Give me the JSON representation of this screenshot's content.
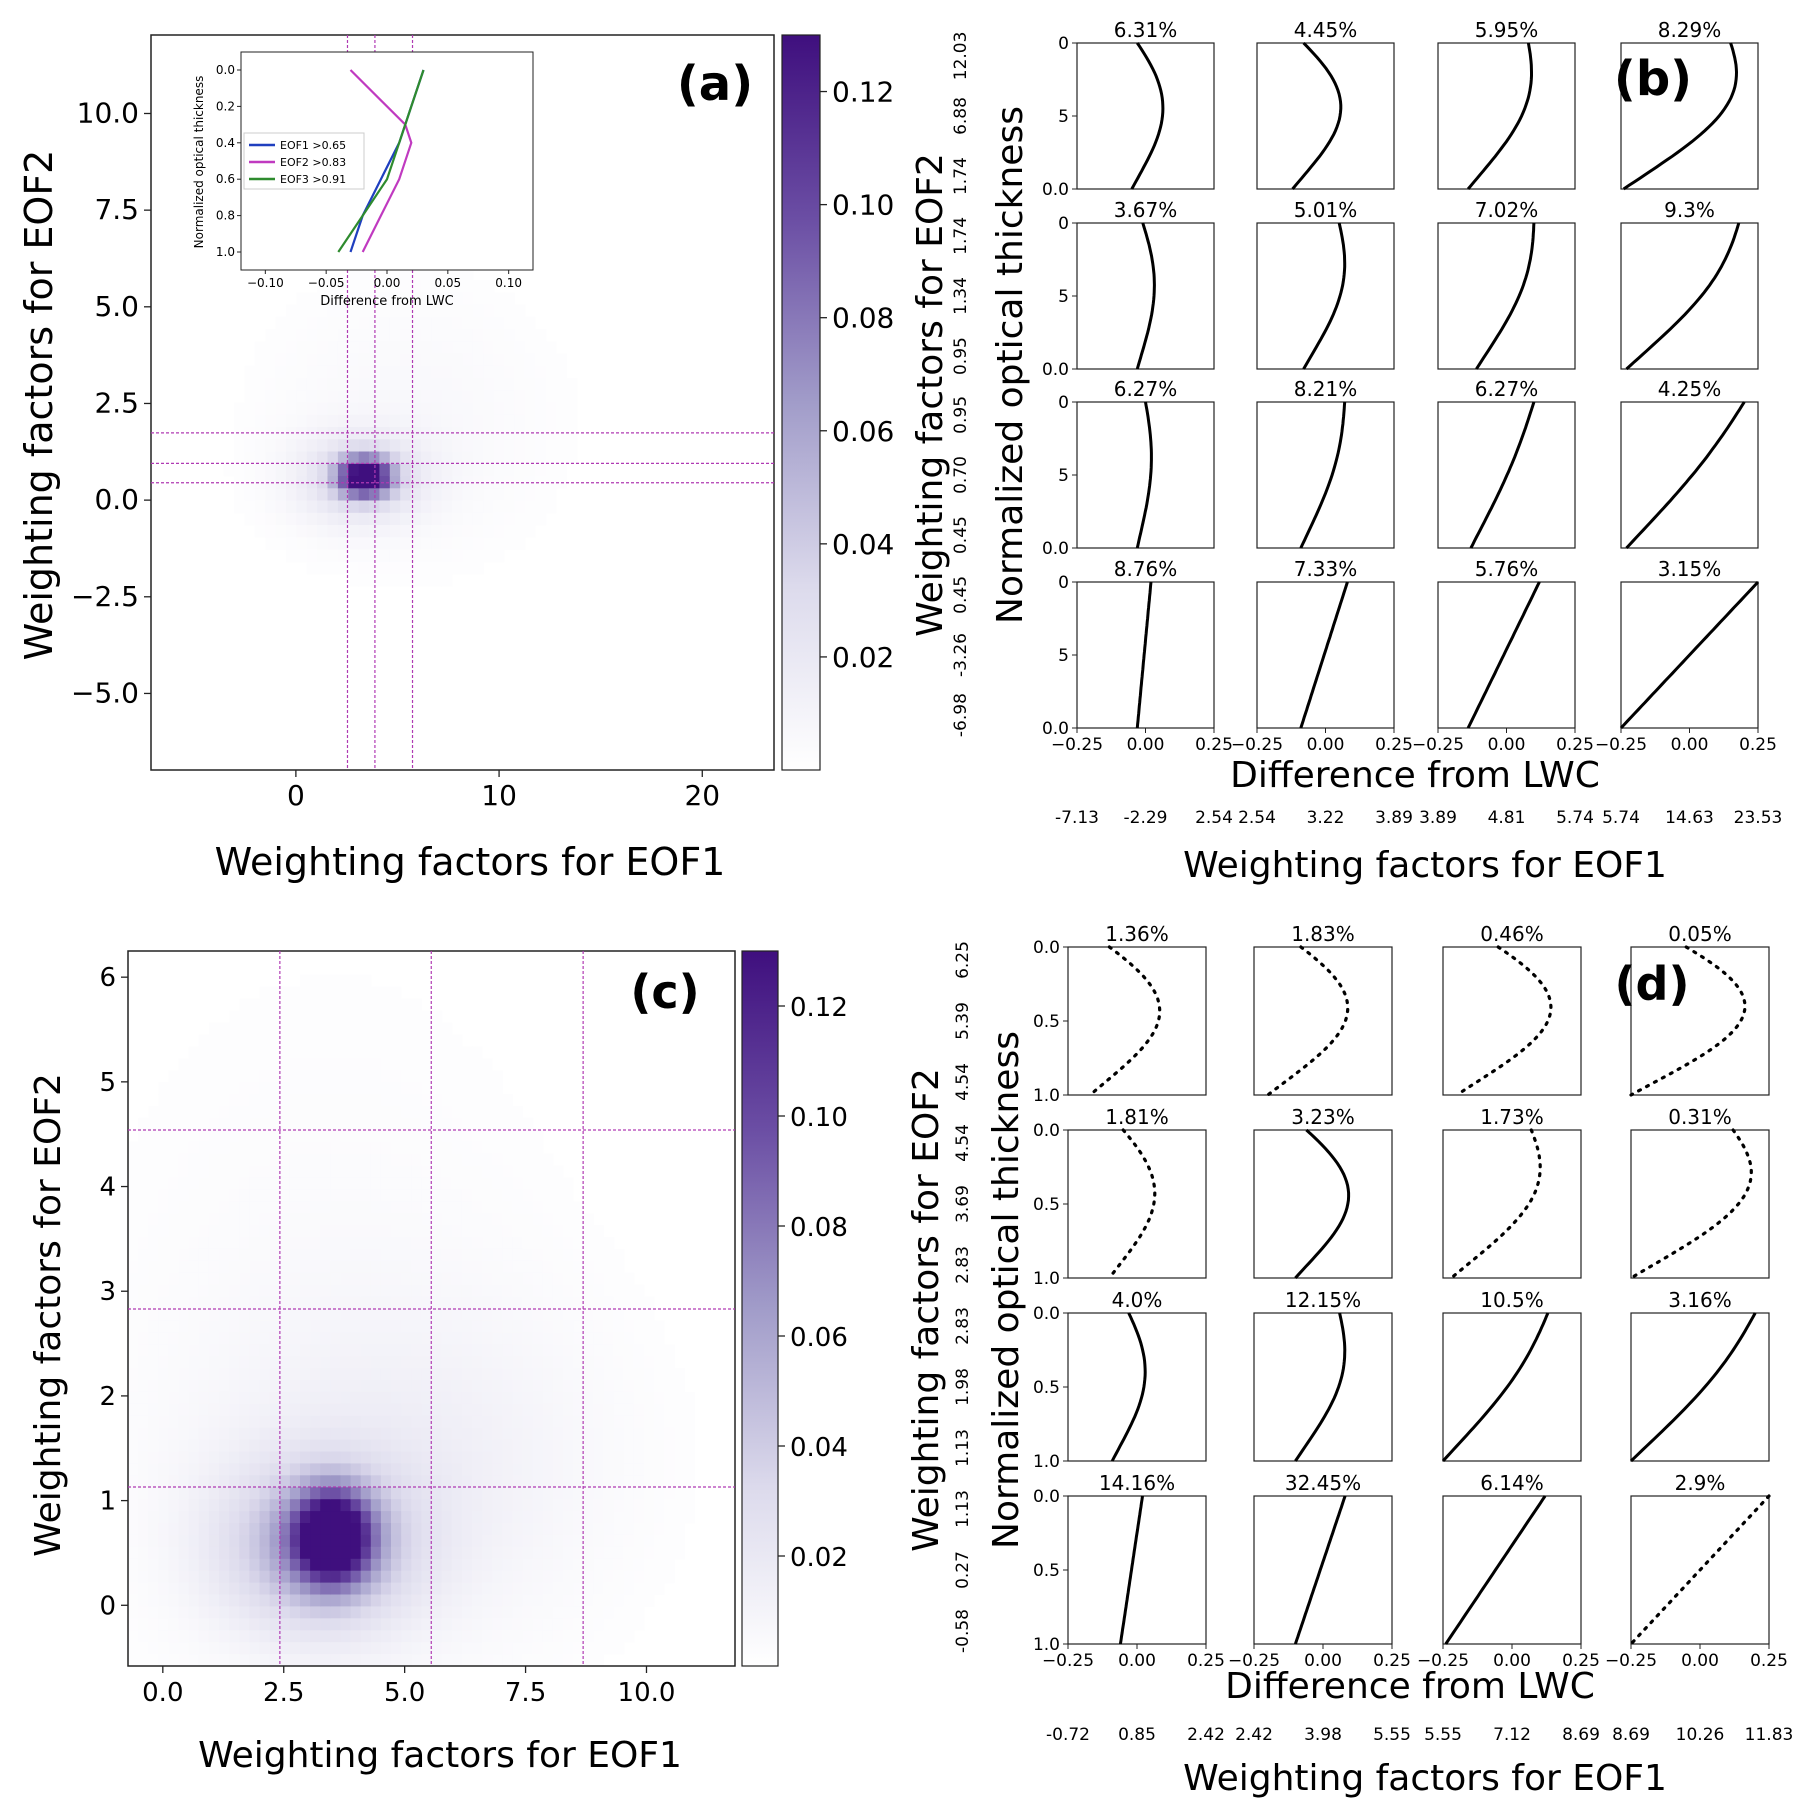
{
  "colors": {
    "cmap_low": "#ffffff",
    "cmap_high": "#3f0f7e",
    "guide_line": "#b03ab3",
    "eof1": "#1f3fbf",
    "eof2": "#c03ac0",
    "eof3": "#2e8b2e",
    "profile": "#000000"
  },
  "panel_a": {
    "label": "(a)",
    "xlabel": "Weighting factors for EOF1",
    "ylabel": "Weighting factors for EOF2",
    "xlim": [
      -7.13,
      23.53
    ],
    "ylim": [
      -6.98,
      12.03
    ],
    "xticks": [
      {
        "v": 0,
        "t": "0"
      },
      {
        "v": 10,
        "t": "10"
      },
      {
        "v": 20,
        "t": "20"
      }
    ],
    "yticks": [
      {
        "v": -5,
        "t": "−5.0"
      },
      {
        "v": -2.5,
        "t": "−2.5"
      },
      {
        "v": 0,
        "t": "0.0"
      },
      {
        "v": 2.5,
        "t": "2.5"
      },
      {
        "v": 5,
        "t": "5.0"
      },
      {
        "v": 7.5,
        "t": "7.5"
      },
      {
        "v": 10,
        "t": "10.0"
      }
    ],
    "vlines": [
      2.54,
      3.89,
      5.74
    ],
    "hlines": [
      0.45,
      0.95,
      1.74
    ],
    "colorbar": {
      "vmax": 0.13,
      "ticks": [
        {
          "v": 0.02,
          "t": "0.02"
        },
        {
          "v": 0.04,
          "t": "0.04"
        },
        {
          "v": 0.06,
          "t": "0.06"
        },
        {
          "v": 0.08,
          "t": "0.08"
        },
        {
          "v": 0.1,
          "t": "0.10"
        },
        {
          "v": 0.12,
          "t": "0.12"
        }
      ]
    },
    "density": [
      {
        "x": 3.4,
        "y": 0.6,
        "sx": 0.9,
        "sy": 0.35,
        "amp": 0.13
      },
      {
        "x": 3.2,
        "y": 0.55,
        "sx": 2.2,
        "sy": 0.8,
        "amp": 0.03
      },
      {
        "x": 5.5,
        "y": 2.0,
        "sx": 5.0,
        "sy": 2.5,
        "amp": 0.006
      }
    ],
    "inset": {
      "xlabel": "Difference from LWC",
      "ylabel": "Normalized optical thickness",
      "xlim": [
        -0.12,
        0.12
      ],
      "ylim": [
        0.0,
        1.0
      ],
      "xticks": [
        {
          "v": -0.1,
          "t": "−0.10"
        },
        {
          "v": -0.05,
          "t": "−0.05"
        },
        {
          "v": 0,
          "t": "0.00"
        },
        {
          "v": 0.05,
          "t": "0.05"
        },
        {
          "v": 0.1,
          "t": "0.10"
        }
      ],
      "yticks": [
        {
          "v": 0,
          "t": "0.0"
        },
        {
          "v": 0.2,
          "t": "0.2"
        },
        {
          "v": 0.4,
          "t": "0.4"
        },
        {
          "v": 0.6,
          "t": "0.6"
        },
        {
          "v": 0.8,
          "t": "0.8"
        },
        {
          "v": 1.0,
          "t": "1.0"
        }
      ],
      "legend": [
        "EOF1 >0.65",
        "EOF2 >0.83",
        "EOF3 >0.91"
      ],
      "series": [
        {
          "name": "EOF1 >0.65",
          "color": "#1f3fbf",
          "x": [
            -0.03,
            -0.02,
            -0.005,
            0.01,
            0.02,
            0.03
          ],
          "y": [
            1.0,
            0.8,
            0.6,
            0.4,
            0.2,
            0.0
          ]
        },
        {
          "name": "EOF2 >0.83",
          "color": "#c03ac0",
          "x": [
            -0.02,
            -0.005,
            0.01,
            0.02,
            0.015,
            -0.03
          ],
          "y": [
            1.0,
            0.8,
            0.6,
            0.4,
            0.3,
            0.0
          ]
        },
        {
          "name": "EOF3 >0.91",
          "color": "#2e8b2e",
          "x": [
            -0.04,
            -0.02,
            0.0,
            0.01,
            0.02,
            0.03
          ],
          "y": [
            1.0,
            0.8,
            0.6,
            0.4,
            0.2,
            0.0
          ]
        }
      ]
    }
  },
  "panel_b": {
    "label": "(b)",
    "xlabel": "Difference from LWC",
    "ylabel_inner": "Normalized optical thickness",
    "ylabel_outer": "Weighting factors for EOF2",
    "xlabel_outer": "Weighting factors for EOF1",
    "xlim": [
      -0.25,
      0.25
    ],
    "ylim": [
      0,
      10
    ],
    "yticks": [
      {
        "v": 0,
        "t": "0.0"
      },
      {
        "v": 5,
        "t": "5"
      },
      {
        "v": 10,
        "t": "0"
      }
    ],
    "xticks": [
      {
        "v": -0.25,
        "t": "−0.25"
      },
      {
        "v": 0,
        "t": "0.00"
      },
      {
        "v": 0.25,
        "t": "0.25"
      }
    ],
    "xticks_last": [
      {
        "v": -0.25,
        "t": "−0.25"
      },
      {
        "v": 0,
        "t": "0.00"
      },
      {
        "v": 0.25,
        "t": "0.25"
      }
    ],
    "row_ticks": [
      [
        "12.03",
        "6.88",
        "1.74"
      ],
      [
        "1.74",
        "1.34",
        "0.95"
      ],
      [
        "0.95",
        "0.70",
        "0.45"
      ],
      [
        "0.45",
        "-3.26",
        "-6.98"
      ]
    ],
    "col_ticks": [
      [
        "-7.13",
        "-2.29",
        "2.54"
      ],
      [
        "2.54",
        "3.22",
        "3.89"
      ],
      [
        "3.89",
        "4.81",
        "5.74"
      ],
      [
        "5.74",
        "14.63",
        "23.53"
      ]
    ],
    "percents": [
      [
        "6.31%",
        "4.45%",
        "5.95%",
        "8.29%"
      ],
      [
        "3.67%",
        "5.01%",
        "7.02%",
        "9.3%"
      ],
      [
        "6.27%",
        "8.21%",
        "6.27%",
        "4.25%"
      ],
      [
        "8.76%",
        "7.33%",
        "5.76%",
        "3.15%"
      ]
    ],
    "profiles": [
      [
        {
          "b": -0.05,
          "t": -0.03,
          "m": 0.12,
          "d": false
        },
        {
          "b": -0.12,
          "t": -0.08,
          "m": 0.18,
          "d": false
        },
        {
          "b": -0.14,
          "t": 0.08,
          "m": 0.1,
          "d": false
        },
        {
          "b": -0.24,
          "t": 0.15,
          "m": 0.18,
          "d": false
        }
      ],
      [
        {
          "b": -0.03,
          "t": -0.01,
          "m": 0.06,
          "d": false
        },
        {
          "b": -0.08,
          "t": 0.05,
          "m": 0.08,
          "d": false
        },
        {
          "b": -0.11,
          "t": 0.1,
          "m": 0.06,
          "d": false
        },
        {
          "b": -0.23,
          "t": 0.18,
          "m": 0.08,
          "d": false
        }
      ],
      [
        {
          "b": -0.03,
          "t": 0.0,
          "m": 0.04,
          "d": false
        },
        {
          "b": -0.09,
          "t": 0.07,
          "m": 0.04,
          "d": false
        },
        {
          "b": -0.13,
          "t": 0.1,
          "m": 0.02,
          "d": false
        },
        {
          "b": -0.23,
          "t": 0.2,
          "m": 0.03,
          "d": false
        }
      ],
      [
        {
          "b": -0.03,
          "t": 0.02,
          "m": 0.0,
          "d": false
        },
        {
          "b": -0.09,
          "t": 0.08,
          "m": 0.0,
          "d": false
        },
        {
          "b": -0.14,
          "t": 0.12,
          "m": 0.0,
          "d": false
        },
        {
          "b": -0.25,
          "t": 0.25,
          "m": 0.0,
          "d": false
        }
      ]
    ]
  },
  "panel_c": {
    "label": "(c)",
    "xlabel": "Weighting factors for EOF1",
    "ylabel": "Weighting factors for EOF2",
    "xlim": [
      -0.72,
      11.83
    ],
    "ylim": [
      -0.58,
      6.25
    ],
    "xticks": [
      {
        "v": 0,
        "t": "0.0"
      },
      {
        "v": 2.5,
        "t": "2.5"
      },
      {
        "v": 5,
        "t": "5.0"
      },
      {
        "v": 7.5,
        "t": "7.5"
      },
      {
        "v": 10,
        "t": "10.0"
      }
    ],
    "yticks": [
      {
        "v": 0,
        "t": "0"
      },
      {
        "v": 1,
        "t": "1"
      },
      {
        "v": 2,
        "t": "2"
      },
      {
        "v": 3,
        "t": "3"
      },
      {
        "v": 4,
        "t": "4"
      },
      {
        "v": 5,
        "t": "5"
      },
      {
        "v": 6,
        "t": "6"
      }
    ],
    "vlines": [
      2.42,
      5.55,
      8.69
    ],
    "hlines": [
      1.13,
      2.83,
      4.54
    ],
    "colorbar": {
      "vmax": 0.13,
      "ticks": [
        {
          "v": 0.02,
          "t": "0.02"
        },
        {
          "v": 0.04,
          "t": "0.04"
        },
        {
          "v": 0.06,
          "t": "0.06"
        },
        {
          "v": 0.08,
          "t": "0.08"
        },
        {
          "v": 0.1,
          "t": "0.10"
        },
        {
          "v": 0.12,
          "t": "0.12"
        }
      ]
    },
    "density": [
      {
        "x": 3.5,
        "y": 0.65,
        "sx": 0.55,
        "sy": 0.3,
        "amp": 0.14
      },
      {
        "x": 3.2,
        "y": 0.55,
        "sx": 1.4,
        "sy": 0.55,
        "amp": 0.05
      },
      {
        "x": 5.0,
        "y": 1.3,
        "sx": 2.8,
        "sy": 1.1,
        "amp": 0.012
      },
      {
        "x": 3.5,
        "y": 2.5,
        "sx": 3.5,
        "sy": 2.5,
        "amp": 0.004
      }
    ]
  },
  "panel_d": {
    "label": "(d)",
    "xlabel": "Difference from LWC",
    "ylabel_inner": "Normalized optical thickness",
    "ylabel_outer": "Weighting factors for EOF2",
    "xlabel_outer": "Weighting factors for EOF1",
    "xlim": [
      -0.25,
      0.25
    ],
    "ylim": [
      0,
      1
    ],
    "yticks": [
      {
        "v": 0,
        "t": "1.0"
      },
      {
        "v": 0.5,
        "t": "0.5"
      },
      {
        "v": 1,
        "t": "0.0"
      }
    ],
    "xticks": [
      {
        "v": -0.25,
        "t": "−0.25"
      },
      {
        "v": 0,
        "t": "0.00"
      },
      {
        "v": 0.25,
        "t": "0.25"
      }
    ],
    "row_ticks": [
      [
        "6.25",
        "5.39",
        "4.54"
      ],
      [
        "4.54",
        "3.69",
        "2.83"
      ],
      [
        "2.83",
        "1.98",
        "1.13"
      ],
      [
        "1.13",
        "0.27",
        "-0.58"
      ]
    ],
    "col_ticks": [
      [
        "-0.72",
        "0.85",
        "2.42"
      ],
      [
        "2.42",
        "3.98",
        "5.55"
      ],
      [
        "5.55",
        "7.12",
        "8.69"
      ],
      [
        "8.69",
        "10.26",
        "11.83"
      ]
    ],
    "percents": [
      [
        "1.36%",
        "1.83%",
        "0.46%",
        "0.05%"
      ],
      [
        "1.81%",
        "3.23%",
        "1.73%",
        "0.31%"
      ],
      [
        "4.0%",
        "12.15%",
        "10.5%",
        "3.16%"
      ],
      [
        "14.16%",
        "32.45%",
        "6.14%",
        "2.9%"
      ]
    ],
    "profiles": [
      [
        {
          "b": -0.17,
          "t": -0.1,
          "m": 0.25,
          "d": true
        },
        {
          "b": -0.2,
          "t": -0.08,
          "m": 0.26,
          "d": true
        },
        {
          "b": -0.2,
          "t": -0.05,
          "m": 0.3,
          "d": true
        },
        {
          "b": -0.25,
          "t": -0.05,
          "m": 0.35,
          "d": true
        }
      ],
      [
        {
          "b": -0.1,
          "t": -0.05,
          "m": 0.16,
          "d": true
        },
        {
          "b": -0.1,
          "t": -0.06,
          "m": 0.2,
          "d": false
        },
        {
          "b": -0.22,
          "t": 0.07,
          "m": 0.16,
          "d": true
        },
        {
          "b": -0.25,
          "t": 0.12,
          "m": 0.24,
          "d": true
        }
      ],
      [
        {
          "b": -0.09,
          "t": -0.03,
          "m": 0.1,
          "d": false
        },
        {
          "b": -0.1,
          "t": 0.06,
          "m": 0.09,
          "d": false
        },
        {
          "b": -0.25,
          "t": 0.13,
          "m": 0.05,
          "d": false
        },
        {
          "b": -0.25,
          "t": 0.2,
          "m": 0.05,
          "d": false
        }
      ],
      [
        {
          "b": -0.06,
          "t": 0.02,
          "m": 0.0,
          "d": false
        },
        {
          "b": -0.1,
          "t": 0.08,
          "m": 0.0,
          "d": false
        },
        {
          "b": -0.24,
          "t": 0.12,
          "m": 0.0,
          "d": false
        },
        {
          "b": -0.25,
          "t": 0.25,
          "m": 0.0,
          "d": true
        }
      ]
    ]
  },
  "chart_data": [
    {
      "type": "heatmap",
      "title": "(a)",
      "xlabel": "Weighting factors for EOF1",
      "ylabel": "Weighting factors for EOF2",
      "xlim": [
        -7.13,
        23.53
      ],
      "ylim": [
        -6.98,
        12.03
      ],
      "colorbar_range": [
        0.0,
        0.13
      ],
      "peak": {
        "x": 3.4,
        "y": 0.6,
        "value": 0.13
      },
      "vertical_lines": [
        2.54,
        3.89,
        5.74
      ],
      "horizontal_lines": [
        0.45,
        0.95,
        1.74
      ]
    },
    {
      "type": "line",
      "title": "(a) inset",
      "xlabel": "Difference from LWC",
      "ylabel": "Normalized optical thickness",
      "series": [
        {
          "name": "EOF1 >0.65"
        },
        {
          "name": "EOF2 >0.83"
        },
        {
          "name": "EOF3 >0.91"
        }
      ]
    },
    {
      "type": "line",
      "title": "(b)",
      "xlabel": "Difference from LWC",
      "ylabel": "Normalized optical thickness",
      "cell_percentages": [
        [
          "6.31%",
          "4.45%",
          "5.95%",
          "8.29%"
        ],
        [
          "3.67%",
          "5.01%",
          "7.02%",
          "9.3%"
        ],
        [
          "6.27%",
          "8.21%",
          "6.27%",
          "4.25%"
        ],
        [
          "8.76%",
          "7.33%",
          "5.76%",
          "3.15%"
        ]
      ]
    },
    {
      "type": "heatmap",
      "title": "(c)",
      "xlabel": "Weighting factors for EOF1",
      "ylabel": "Weighting factors for EOF2",
      "xlim": [
        -0.72,
        11.83
      ],
      "ylim": [
        -0.58,
        6.25
      ],
      "colorbar_range": [
        0.0,
        0.13
      ],
      "peak": {
        "x": 3.5,
        "y": 0.65,
        "value": 0.13
      },
      "vertical_lines": [
        2.42,
        5.55,
        8.69
      ],
      "horizontal_lines": [
        1.13,
        2.83,
        4.54
      ]
    },
    {
      "type": "line",
      "title": "(d)",
      "xlabel": "Difference from LWC",
      "ylabel": "Normalized optical thickness",
      "cell_percentages": [
        [
          "1.36%",
          "1.83%",
          "0.46%",
          "0.05%"
        ],
        [
          "1.81%",
          "3.23%",
          "1.73%",
          "0.31%"
        ],
        [
          "4.0%",
          "12.15%",
          "10.5%",
          "3.16%"
        ],
        [
          "14.16%",
          "32.45%",
          "6.14%",
          "2.9%"
        ]
      ]
    }
  ]
}
